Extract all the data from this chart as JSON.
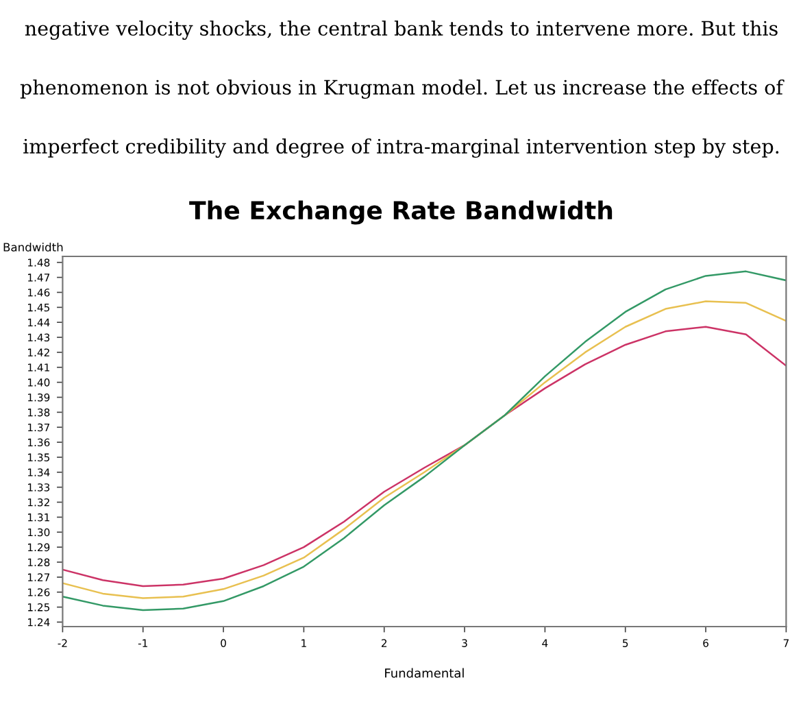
{
  "chart_data": {
    "type": "line",
    "title": "The Exchange Rate Bandwidth",
    "xlabel": "Fundamental",
    "ylabel": "Bandwidth",
    "annotations": [
      "negative velocity shocks, the central bank tends to intervene more. But this",
      "phenomenon is not obvious in Krugman model. Let us increase the effects of",
      "imperfect credibility and degree of intra-marginal intervention step by step."
    ],
    "x": [
      -2,
      -1.5,
      -1,
      -0.5,
      0,
      0.5,
      1,
      1.5,
      2,
      2.5,
      3,
      3.5,
      4,
      4.5,
      5,
      5.5,
      6,
      6.5,
      7
    ],
    "series": [
      {
        "color": "#cc3366",
        "values": [
          1.275,
          1.268,
          1.264,
          1.265,
          1.269,
          1.278,
          1.29,
          1.307,
          1.327,
          1.343,
          1.358,
          1.378,
          1.396,
          1.412,
          1.425,
          1.434,
          1.437,
          1.432,
          1.411
        ]
      },
      {
        "color": "#e8c050",
        "values": [
          1.266,
          1.259,
          1.256,
          1.257,
          1.262,
          1.271,
          1.283,
          1.302,
          1.323,
          1.34,
          1.358,
          1.378,
          1.4,
          1.42,
          1.437,
          1.449,
          1.454,
          1.453,
          1.441
        ]
      },
      {
        "color": "#339966",
        "values": [
          1.257,
          1.251,
          1.248,
          1.249,
          1.254,
          1.264,
          1.277,
          1.296,
          1.318,
          1.337,
          1.358,
          1.378,
          1.404,
          1.427,
          1.447,
          1.462,
          1.471,
          1.474,
          1.468
        ]
      }
    ],
    "xlim": [
      -2,
      7
    ],
    "xticks": [
      -2,
      -1,
      0,
      1,
      2,
      3,
      4,
      5,
      6,
      7
    ],
    "ylim": [
      1.237,
      1.484
    ],
    "yticks": [
      1.24,
      1.25,
      1.26,
      1.27,
      1.28,
      1.29,
      {
        "value": 1.3,
        "label": "1.30"
      },
      1.31,
      1.32,
      1.33,
      1.34,
      1.35,
      1.36,
      1.37,
      1.38,
      1.39,
      {
        "value": 1.4,
        "label": "1.40"
      },
      1.41,
      1.42,
      1.43,
      1.44,
      1.45,
      1.46,
      1.47,
      1.48
    ],
    "grid": false,
    "marker": "none",
    "line_style": "solid"
  }
}
